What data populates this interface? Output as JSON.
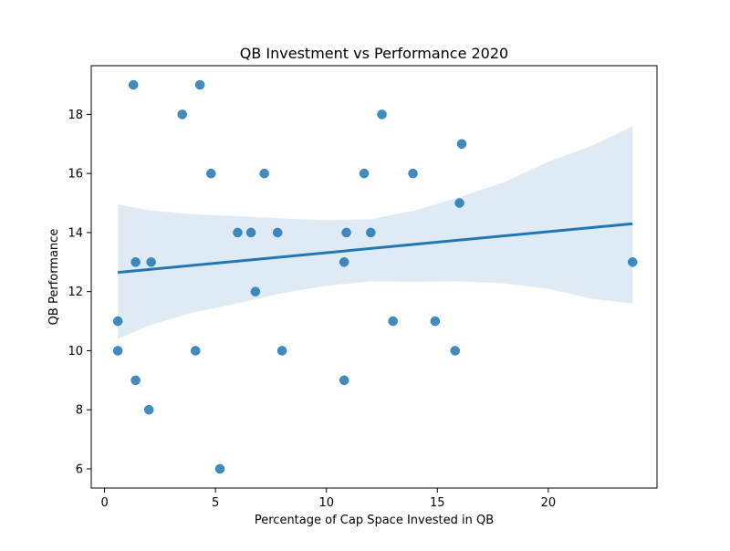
{
  "chart_data": {
    "type": "scatter",
    "title": "QB Investment vs Performance 2020",
    "xlabel": "Percentage of Cap Space Invested in QB",
    "ylabel": "QB Performance",
    "xlim": [
      -0.6,
      24.9
    ],
    "ylim": [
      5.35,
      19.65
    ],
    "xticks": [
      0,
      5,
      10,
      15,
      20
    ],
    "yticks": [
      6,
      8,
      10,
      12,
      14,
      16,
      18
    ],
    "grid": false,
    "legend": "none",
    "colors": {
      "points": "#1f77b4",
      "regression_line": "#1f77b4",
      "confidence_band": "#1f77b4"
    },
    "points": [
      {
        "x": 1.3,
        "y": 19
      },
      {
        "x": 4.3,
        "y": 19
      },
      {
        "x": 3.5,
        "y": 18
      },
      {
        "x": 12.5,
        "y": 18
      },
      {
        "x": 16.1,
        "y": 17
      },
      {
        "x": 4.8,
        "y": 16
      },
      {
        "x": 7.2,
        "y": 16
      },
      {
        "x": 11.7,
        "y": 16
      },
      {
        "x": 13.9,
        "y": 16
      },
      {
        "x": 16.0,
        "y": 15
      },
      {
        "x": 6.0,
        "y": 14
      },
      {
        "x": 6.6,
        "y": 14
      },
      {
        "x": 7.8,
        "y": 14
      },
      {
        "x": 10.9,
        "y": 14
      },
      {
        "x": 12.0,
        "y": 14
      },
      {
        "x": 1.4,
        "y": 13
      },
      {
        "x": 2.1,
        "y": 13
      },
      {
        "x": 10.8,
        "y": 13
      },
      {
        "x": 23.8,
        "y": 13
      },
      {
        "x": 6.8,
        "y": 12
      },
      {
        "x": 0.6,
        "y": 11
      },
      {
        "x": 13.0,
        "y": 11
      },
      {
        "x": 14.9,
        "y": 11
      },
      {
        "x": 0.6,
        "y": 10
      },
      {
        "x": 4.1,
        "y": 10
      },
      {
        "x": 8.0,
        "y": 10
      },
      {
        "x": 15.8,
        "y": 10
      },
      {
        "x": 1.4,
        "y": 9
      },
      {
        "x": 10.8,
        "y": 9
      },
      {
        "x": 2.0,
        "y": 8
      },
      {
        "x": 5.2,
        "y": 6
      }
    ],
    "regression": {
      "line": [
        [
          0.6,
          12.65
        ],
        [
          23.8,
          14.3
        ]
      ],
      "ci_upper": [
        [
          0.6,
          14.95
        ],
        [
          2,
          14.75
        ],
        [
          4,
          14.62
        ],
        [
          6,
          14.55
        ],
        [
          8,
          14.48
        ],
        [
          10,
          14.42
        ],
        [
          12,
          14.45
        ],
        [
          14,
          14.75
        ],
        [
          16,
          15.2
        ],
        [
          18,
          15.7
        ],
        [
          20,
          16.4
        ],
        [
          22,
          16.95
        ],
        [
          23.8,
          17.6
        ]
      ],
      "ci_lower": [
        [
          23.8,
          11.6
        ],
        [
          22,
          11.75
        ],
        [
          20,
          12.1
        ],
        [
          18,
          12.28
        ],
        [
          16,
          12.35
        ],
        [
          14,
          12.33
        ],
        [
          12,
          12.35
        ],
        [
          10,
          12.2
        ],
        [
          8,
          11.95
        ],
        [
          6,
          11.6
        ],
        [
          4,
          11.3
        ],
        [
          2,
          10.85
        ],
        [
          0.6,
          10.4
        ]
      ]
    }
  }
}
